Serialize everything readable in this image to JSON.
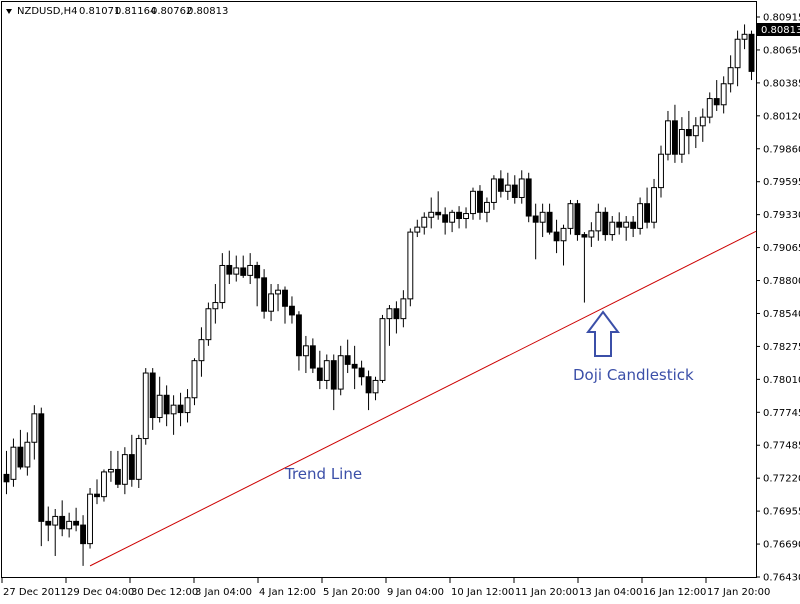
{
  "chart_data": {
    "type": "candlestick",
    "symbol": "NZDUSD,H4",
    "ohlc_header": [
      "0.81071",
      "0.81164",
      "0.80762",
      "0.80813"
    ],
    "current_price": "0.80813",
    "y_range": [
      0.7643,
      0.8096
    ],
    "y_ticks": [
      "0.80915",
      "0.80650",
      "0.80385",
      "0.80120",
      "0.79860",
      "0.79595",
      "0.79330",
      "0.79065",
      "0.78800",
      "0.78540",
      "0.78275",
      "0.78010",
      "0.77745",
      "0.77485",
      "0.77220",
      "0.76955",
      "0.76690",
      "0.76430"
    ],
    "x_ticks": [
      "27 Dec 2011",
      "29 Dec 04:00",
      "30 Dec 12:00",
      "3 Jan 04:00",
      "4 Jan 12:00",
      "5 Jan 20:00",
      "9 Jan 04:00",
      "10 Jan 12:00",
      "11 Jan 20:00",
      "13 Jan 04:00",
      "16 Jan 12:00",
      "17 Jan 20:00"
    ],
    "candles": [
      {
        "o": 0.7726,
        "h": 0.7745,
        "l": 0.771,
        "c": 0.772
      },
      {
        "o": 0.7722,
        "h": 0.7755,
        "l": 0.7716,
        "c": 0.7748
      },
      {
        "o": 0.7748,
        "h": 0.7762,
        "l": 0.773,
        "c": 0.7732
      },
      {
        "o": 0.7732,
        "h": 0.776,
        "l": 0.7725,
        "c": 0.7752
      },
      {
        "o": 0.7752,
        "h": 0.7782,
        "l": 0.7738,
        "c": 0.7775
      },
      {
        "o": 0.7775,
        "h": 0.778,
        "l": 0.7668,
        "c": 0.7688
      },
      {
        "o": 0.7688,
        "h": 0.77,
        "l": 0.7672,
        "c": 0.7685
      },
      {
        "o": 0.7685,
        "h": 0.7698,
        "l": 0.766,
        "c": 0.7692
      },
      {
        "o": 0.7692,
        "h": 0.7705,
        "l": 0.7676,
        "c": 0.7682
      },
      {
        "o": 0.7682,
        "h": 0.7695,
        "l": 0.7675,
        "c": 0.7688
      },
      {
        "o": 0.7688,
        "h": 0.7699,
        "l": 0.768,
        "c": 0.7685
      },
      {
        "o": 0.7685,
        "h": 0.7693,
        "l": 0.7652,
        "c": 0.767
      },
      {
        "o": 0.767,
        "h": 0.7715,
        "l": 0.7666,
        "c": 0.771
      },
      {
        "o": 0.771,
        "h": 0.7722,
        "l": 0.7702,
        "c": 0.7708
      },
      {
        "o": 0.7708,
        "h": 0.773,
        "l": 0.7704,
        "c": 0.7728
      },
      {
        "o": 0.7728,
        "h": 0.7745,
        "l": 0.772,
        "c": 0.773
      },
      {
        "o": 0.773,
        "h": 0.7745,
        "l": 0.7715,
        "c": 0.7718
      },
      {
        "o": 0.7718,
        "h": 0.7748,
        "l": 0.771,
        "c": 0.7742
      },
      {
        "o": 0.7742,
        "h": 0.7758,
        "l": 0.7716,
        "c": 0.7722
      },
      {
        "o": 0.7722,
        "h": 0.7758,
        "l": 0.7715,
        "c": 0.7755
      },
      {
        "o": 0.7755,
        "h": 0.7812,
        "l": 0.775,
        "c": 0.7808
      },
      {
        "o": 0.7808,
        "h": 0.7812,
        "l": 0.7762,
        "c": 0.7772
      },
      {
        "o": 0.7772,
        "h": 0.7805,
        "l": 0.7768,
        "c": 0.779
      },
      {
        "o": 0.779,
        "h": 0.7798,
        "l": 0.7765,
        "c": 0.7775
      },
      {
        "o": 0.7775,
        "h": 0.779,
        "l": 0.7758,
        "c": 0.7782
      },
      {
        "o": 0.7782,
        "h": 0.7792,
        "l": 0.7765,
        "c": 0.7776
      },
      {
        "o": 0.7776,
        "h": 0.7795,
        "l": 0.7768,
        "c": 0.7788
      },
      {
        "o": 0.7788,
        "h": 0.782,
        "l": 0.7782,
        "c": 0.7818
      },
      {
        "o": 0.7818,
        "h": 0.7845,
        "l": 0.7805,
        "c": 0.7835
      },
      {
        "o": 0.7835,
        "h": 0.7865,
        "l": 0.783,
        "c": 0.786
      },
      {
        "o": 0.786,
        "h": 0.788,
        "l": 0.7848,
        "c": 0.7865
      },
      {
        "o": 0.7865,
        "h": 0.7905,
        "l": 0.786,
        "c": 0.7895
      },
      {
        "o": 0.7895,
        "h": 0.7907,
        "l": 0.788,
        "c": 0.7888
      },
      {
        "o": 0.7888,
        "h": 0.7903,
        "l": 0.7882,
        "c": 0.7893
      },
      {
        "o": 0.7893,
        "h": 0.7903,
        "l": 0.7885,
        "c": 0.7887
      },
      {
        "o": 0.7887,
        "h": 0.7905,
        "l": 0.788,
        "c": 0.7895
      },
      {
        "o": 0.7895,
        "h": 0.7898,
        "l": 0.7862,
        "c": 0.7885
      },
      {
        "o": 0.7885,
        "h": 0.7892,
        "l": 0.7852,
        "c": 0.7858
      },
      {
        "o": 0.7858,
        "h": 0.788,
        "l": 0.785,
        "c": 0.7872
      },
      {
        "o": 0.7872,
        "h": 0.788,
        "l": 0.7858,
        "c": 0.7875
      },
      {
        "o": 0.7875,
        "h": 0.7878,
        "l": 0.7848,
        "c": 0.7862
      },
      {
        "o": 0.7862,
        "h": 0.787,
        "l": 0.7848,
        "c": 0.7855
      },
      {
        "o": 0.7855,
        "h": 0.7858,
        "l": 0.781,
        "c": 0.7822
      },
      {
        "o": 0.7822,
        "h": 0.7838,
        "l": 0.7808,
        "c": 0.783
      },
      {
        "o": 0.783,
        "h": 0.7836,
        "l": 0.7808,
        "c": 0.7812
      },
      {
        "o": 0.7812,
        "h": 0.7826,
        "l": 0.7795,
        "c": 0.7802
      },
      {
        "o": 0.7802,
        "h": 0.7823,
        "l": 0.7795,
        "c": 0.7818
      },
      {
        "o": 0.7818,
        "h": 0.7823,
        "l": 0.7778,
        "c": 0.7795
      },
      {
        "o": 0.7795,
        "h": 0.783,
        "l": 0.779,
        "c": 0.7822
      },
      {
        "o": 0.7822,
        "h": 0.7835,
        "l": 0.7808,
        "c": 0.7815
      },
      {
        "o": 0.7815,
        "h": 0.783,
        "l": 0.7795,
        "c": 0.7812
      },
      {
        "o": 0.7812,
        "h": 0.7818,
        "l": 0.7798,
        "c": 0.7805
      },
      {
        "o": 0.7805,
        "h": 0.781,
        "l": 0.7778,
        "c": 0.7792
      },
      {
        "o": 0.7792,
        "h": 0.7805,
        "l": 0.7786,
        "c": 0.7802
      },
      {
        "o": 0.7802,
        "h": 0.7855,
        "l": 0.78,
        "c": 0.7852
      },
      {
        "o": 0.7852,
        "h": 0.7863,
        "l": 0.783,
        "c": 0.786
      },
      {
        "o": 0.786,
        "h": 0.7866,
        "l": 0.784,
        "c": 0.7852
      },
      {
        "o": 0.7852,
        "h": 0.7875,
        "l": 0.7845,
        "c": 0.7868
      },
      {
        "o": 0.7868,
        "h": 0.7925,
        "l": 0.7862,
        "c": 0.7922
      },
      {
        "o": 0.7922,
        "h": 0.7932,
        "l": 0.7918,
        "c": 0.7926
      },
      {
        "o": 0.7926,
        "h": 0.7938,
        "l": 0.792,
        "c": 0.7934
      },
      {
        "o": 0.7934,
        "h": 0.795,
        "l": 0.7925,
        "c": 0.7938
      },
      {
        "o": 0.7938,
        "h": 0.7955,
        "l": 0.7932,
        "c": 0.7936
      },
      {
        "o": 0.7936,
        "h": 0.7942,
        "l": 0.792,
        "c": 0.793
      },
      {
        "o": 0.793,
        "h": 0.794,
        "l": 0.7922,
        "c": 0.7938
      },
      {
        "o": 0.7938,
        "h": 0.7943,
        "l": 0.7925,
        "c": 0.7933
      },
      {
        "o": 0.7933,
        "h": 0.7942,
        "l": 0.7925,
        "c": 0.7937
      },
      {
        "o": 0.7937,
        "h": 0.7958,
        "l": 0.7932,
        "c": 0.7955
      },
      {
        "o": 0.7955,
        "h": 0.796,
        "l": 0.7932,
        "c": 0.7938
      },
      {
        "o": 0.7938,
        "h": 0.795,
        "l": 0.793,
        "c": 0.7946
      },
      {
        "o": 0.7946,
        "h": 0.7968,
        "l": 0.794,
        "c": 0.7965
      },
      {
        "o": 0.7965,
        "h": 0.7972,
        "l": 0.795,
        "c": 0.7955
      },
      {
        "o": 0.7955,
        "h": 0.797,
        "l": 0.7948,
        "c": 0.796
      },
      {
        "o": 0.796,
        "h": 0.7968,
        "l": 0.7945,
        "c": 0.795
      },
      {
        "o": 0.795,
        "h": 0.7972,
        "l": 0.7945,
        "c": 0.7965
      },
      {
        "o": 0.7965,
        "h": 0.797,
        "l": 0.793,
        "c": 0.7935
      },
      {
        "o": 0.7935,
        "h": 0.7945,
        "l": 0.79,
        "c": 0.793
      },
      {
        "o": 0.793,
        "h": 0.7945,
        "l": 0.7918,
        "c": 0.7938
      },
      {
        "o": 0.7938,
        "h": 0.7945,
        "l": 0.792,
        "c": 0.7922
      },
      {
        "o": 0.7922,
        "h": 0.7932,
        "l": 0.7905,
        "c": 0.7915
      },
      {
        "o": 0.7915,
        "h": 0.7928,
        "l": 0.7895,
        "c": 0.7925
      },
      {
        "o": 0.7925,
        "h": 0.7948,
        "l": 0.792,
        "c": 0.7945
      },
      {
        "o": 0.7945,
        "h": 0.7948,
        "l": 0.7915,
        "c": 0.792
      },
      {
        "o": 0.792,
        "h": 0.7922,
        "l": 0.7865,
        "c": 0.7918
      },
      {
        "o": 0.7918,
        "h": 0.793,
        "l": 0.791,
        "c": 0.7923
      },
      {
        "o": 0.7923,
        "h": 0.7945,
        "l": 0.7915,
        "c": 0.7938
      },
      {
        "o": 0.7938,
        "h": 0.7942,
        "l": 0.7915,
        "c": 0.792
      },
      {
        "o": 0.792,
        "h": 0.7935,
        "l": 0.7915,
        "c": 0.793
      },
      {
        "o": 0.793,
        "h": 0.7938,
        "l": 0.792,
        "c": 0.7926
      },
      {
        "o": 0.7926,
        "h": 0.7935,
        "l": 0.7915,
        "c": 0.793
      },
      {
        "o": 0.793,
        "h": 0.7935,
        "l": 0.7918,
        "c": 0.7925
      },
      {
        "o": 0.7925,
        "h": 0.795,
        "l": 0.792,
        "c": 0.7945
      },
      {
        "o": 0.7945,
        "h": 0.7958,
        "l": 0.7925,
        "c": 0.793
      },
      {
        "o": 0.793,
        "h": 0.7965,
        "l": 0.7925,
        "c": 0.7958
      },
      {
        "o": 0.7958,
        "h": 0.7992,
        "l": 0.795,
        "c": 0.7985
      },
      {
        "o": 0.7985,
        "h": 0.802,
        "l": 0.798,
        "c": 0.8012
      },
      {
        "o": 0.8012,
        "h": 0.8025,
        "l": 0.7978,
        "c": 0.7985
      },
      {
        "o": 0.7985,
        "h": 0.8015,
        "l": 0.7978,
        "c": 0.8005
      },
      {
        "o": 0.8005,
        "h": 0.802,
        "l": 0.7985,
        "c": 0.8
      },
      {
        "o": 0.8,
        "h": 0.8015,
        "l": 0.799,
        "c": 0.8008
      },
      {
        "o": 0.8008,
        "h": 0.8022,
        "l": 0.7995,
        "c": 0.8015
      },
      {
        "o": 0.8015,
        "h": 0.8035,
        "l": 0.801,
        "c": 0.803
      },
      {
        "o": 0.803,
        "h": 0.8045,
        "l": 0.802,
        "c": 0.8025
      },
      {
        "o": 0.8025,
        "h": 0.8048,
        "l": 0.8018,
        "c": 0.8042
      },
      {
        "o": 0.8042,
        "h": 0.8065,
        "l": 0.8035,
        "c": 0.8055
      },
      {
        "o": 0.8055,
        "h": 0.8085,
        "l": 0.804,
        "c": 0.8078
      },
      {
        "o": 0.8078,
        "h": 0.809,
        "l": 0.807,
        "c": 0.8082
      },
      {
        "o": 0.8082,
        "h": 0.8085,
        "l": 0.8045,
        "c": 0.8052
      }
    ],
    "trend_line": {
      "from": {
        "index": 12,
        "price": 0.7652
      },
      "to": {
        "index": 112,
        "price": 0.7935
      }
    },
    "annotations": {
      "trend_line_label": "Trend Line",
      "doji_label": "Doji Candlestick"
    },
    "colors": {
      "bull_body": "#ffffff",
      "bear_body": "#000000",
      "candle_outline": "#000000",
      "trend_line": "#cc0000",
      "annotation": "#3b4fa8",
      "price_tag": "#000000"
    }
  }
}
